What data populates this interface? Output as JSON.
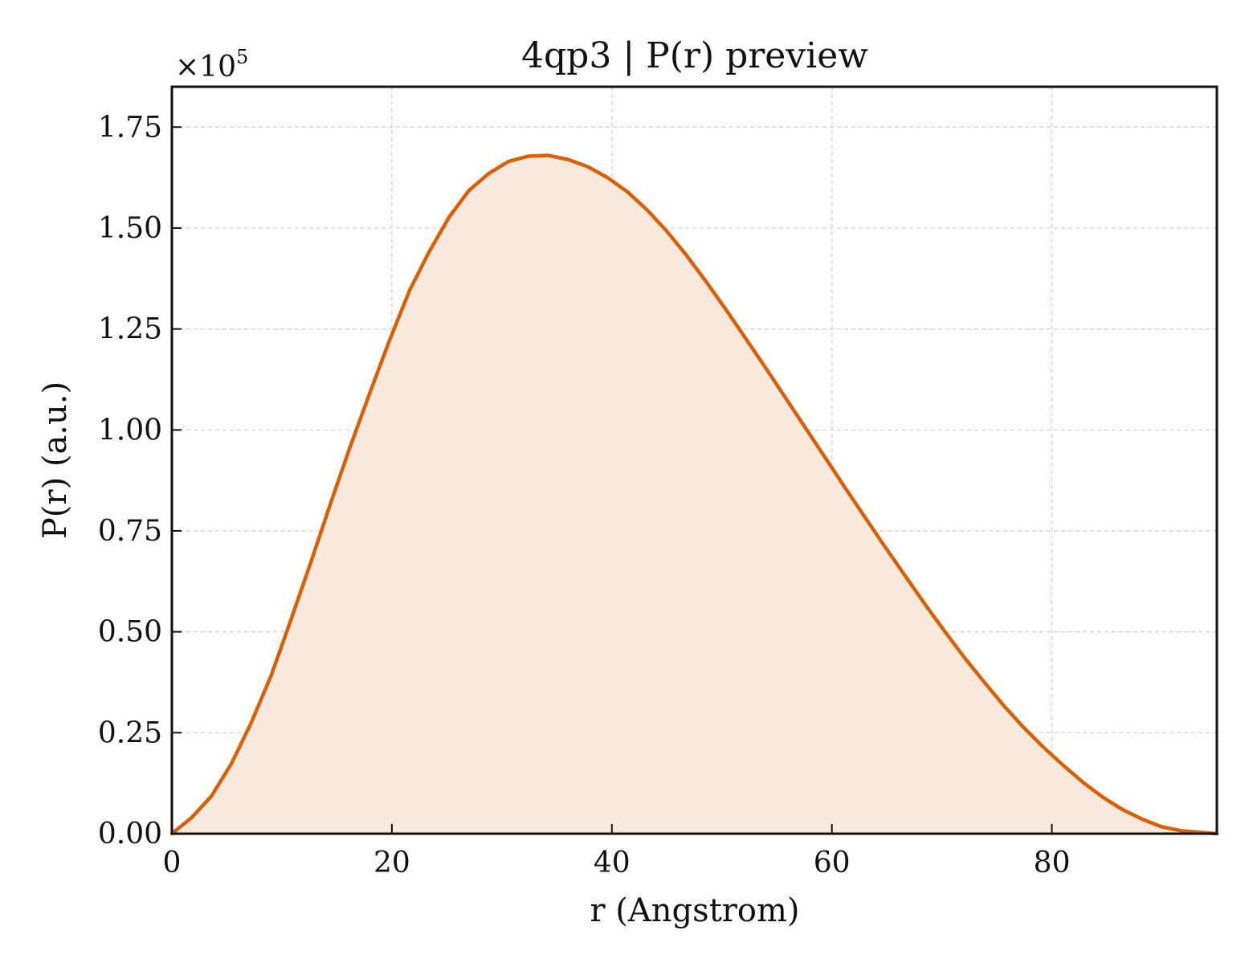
{
  "chart_data": {
    "type": "area",
    "title": "4qp3 | P(r) preview",
    "xlabel": "r (Angstrom)",
    "ylabel": "P(r) (a.u.)",
    "y_multiplier": {
      "base": "×10",
      "exponent": "5"
    },
    "xlim": [
      0,
      95
    ],
    "ylim": [
      0,
      1.85
    ],
    "y_scale_note": "values in units of 1e5",
    "xticks": [
      0,
      20,
      40,
      60,
      80
    ],
    "xtick_labels": [
      "0",
      "20",
      "40",
      "60",
      "80"
    ],
    "yticks": [
      0,
      0.25,
      0.5,
      0.75,
      1.0,
      1.25,
      1.5,
      1.75
    ],
    "ytick_labels": [
      "0.00",
      "0.25",
      "0.50",
      "0.75",
      "1.00",
      "1.25",
      "1.50",
      "1.75"
    ],
    "grid": true,
    "legend": "none",
    "colors": {
      "line": "#d95f02",
      "fill": "#f8e9df",
      "axis": "#111111",
      "grid": "#cfcfcf"
    },
    "series": [
      {
        "x": [
          0,
          1.8,
          3.6,
          5.4,
          7.2,
          9.0,
          10.8,
          12.6,
          14.4,
          16.2,
          18.0,
          19.8,
          21.6,
          23.4,
          25.2,
          27.0,
          28.8,
          30.6,
          32.4,
          34.2,
          36.0,
          37.8,
          39.6,
          41.4,
          43.2,
          45.0,
          46.8,
          48.6,
          50.4,
          52.2,
          54.0,
          55.8,
          57.6,
          59.4,
          61.2,
          63.0,
          64.8,
          66.6,
          68.4,
          70.2,
          72.0,
          73.8,
          75.6,
          77.4,
          79.2,
          81.0,
          82.8,
          84.6,
          86.4,
          88.2,
          90.0,
          91.8,
          93.6,
          95.0
        ],
        "y": [
          0.0,
          0.04,
          0.093,
          0.173,
          0.274,
          0.39,
          0.528,
          0.67,
          0.816,
          0.958,
          1.092,
          1.223,
          1.345,
          1.442,
          1.527,
          1.593,
          1.635,
          1.665,
          1.678,
          1.68,
          1.67,
          1.652,
          1.625,
          1.59,
          1.545,
          1.492,
          1.432,
          1.366,
          1.297,
          1.225,
          1.153,
          1.079,
          1.005,
          0.931,
          0.857,
          0.784,
          0.712,
          0.641,
          0.571,
          0.503,
          0.438,
          0.377,
          0.318,
          0.264,
          0.215,
          0.17,
          0.128,
          0.091,
          0.06,
          0.036,
          0.017,
          0.007,
          0.003,
          0.0
        ]
      }
    ]
  }
}
